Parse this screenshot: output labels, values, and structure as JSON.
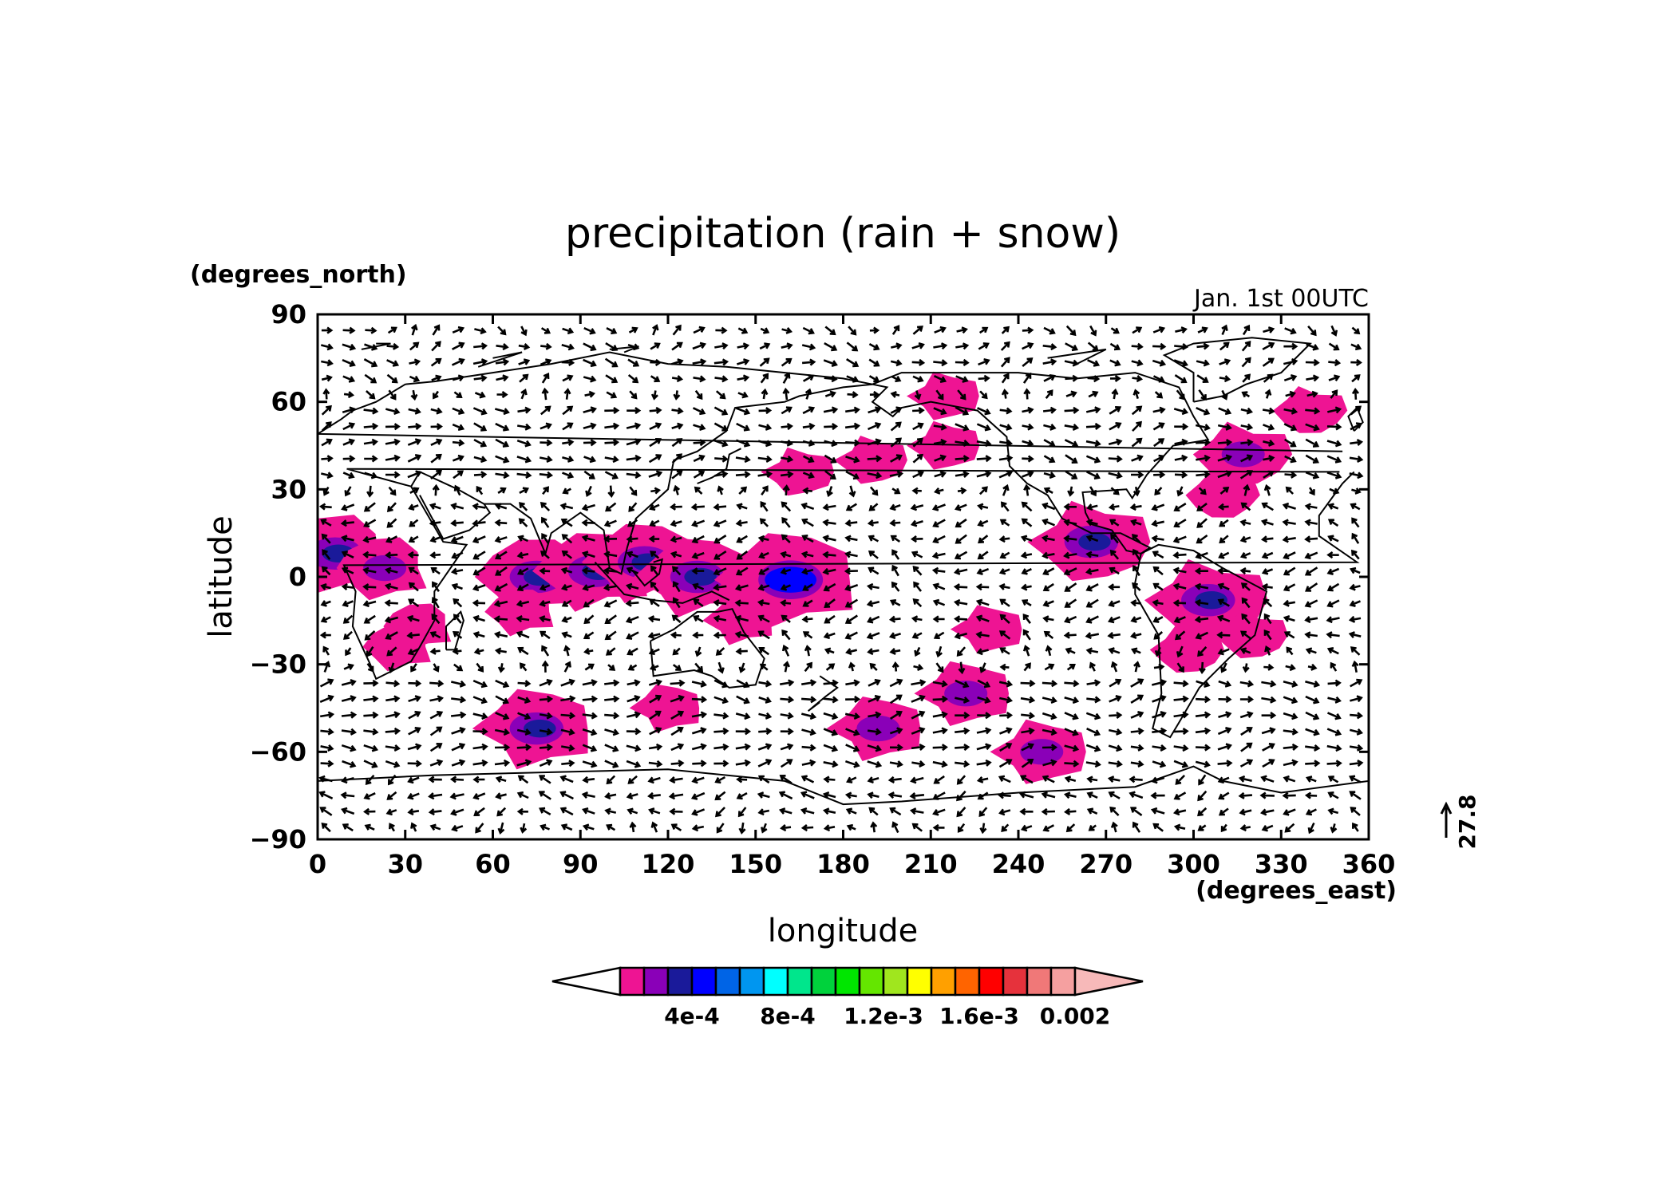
{
  "title": "precipitation (rain + snow)",
  "time_label": "Jan. 1st 00UTC",
  "y_units": "(degrees_north)",
  "x_units": "(degrees_east)",
  "x_title": "longitude",
  "y_title": "latitude",
  "vector_ref": "27.8",
  "x_ticks": [
    "0",
    "30",
    "60",
    "90",
    "120",
    "150",
    "180",
    "210",
    "240",
    "270",
    "300",
    "330",
    "360"
  ],
  "y_ticks": [
    "90",
    "60",
    "30",
    "0",
    "−30",
    "−60",
    "−90"
  ],
  "colorbar": {
    "colors": [
      "#ee1493",
      "#8a00b8",
      "#1a1a9a",
      "#0000ff",
      "#0064e6",
      "#0096f0",
      "#00ffff",
      "#00e68c",
      "#00d23c",
      "#00e600",
      "#64e600",
      "#a0e61e",
      "#ffff00",
      "#ffa000",
      "#ff6400",
      "#ff0000",
      "#e6323c",
      "#f07878",
      "#f5a0a0"
    ],
    "low_end_color": "#ffffff",
    "high_end_color": "#f7b9b9",
    "labels": [
      "4e-4",
      "8e-4",
      "1.2e-3",
      "1.6e-3",
      "0.002"
    ]
  },
  "chart_data": {
    "type": "heatmap",
    "title": "precipitation (rain + snow)",
    "xlabel": "longitude",
    "ylabel": "latitude",
    "x_units": "degrees_east",
    "y_units": "degrees_north",
    "xlim": [
      0,
      360
    ],
    "ylim": [
      -90,
      90
    ],
    "annotation": "Jan. 1st 00UTC",
    "vector_reference": 27.8,
    "precip_regions": [
      {
        "lon": 6,
        "lat": 8,
        "level": 3
      },
      {
        "lon": 23,
        "lat": 3,
        "level": 2
      },
      {
        "lon": 35,
        "lat": -17,
        "level": 1
      },
      {
        "lon": 28,
        "lat": -24,
        "level": 1
      },
      {
        "lon": 75,
        "lat": 0,
        "level": 3
      },
      {
        "lon": 70,
        "lat": -12,
        "level": 1
      },
      {
        "lon": 95,
        "lat": 2,
        "level": 3
      },
      {
        "lon": 112,
        "lat": 5,
        "level": 3
      },
      {
        "lon": 130,
        "lat": 0,
        "level": 3
      },
      {
        "lon": 162,
        "lat": -1,
        "level": 4
      },
      {
        "lon": 145,
        "lat": -15,
        "level": 1
      },
      {
        "lon": 75,
        "lat": -52,
        "level": 3
      },
      {
        "lon": 120,
        "lat": -45,
        "level": 1
      },
      {
        "lon": 192,
        "lat": -52,
        "level": 2
      },
      {
        "lon": 222,
        "lat": -40,
        "level": 2
      },
      {
        "lon": 230,
        "lat": -18,
        "level": 1
      },
      {
        "lon": 248,
        "lat": -60,
        "level": 2
      },
      {
        "lon": 215,
        "lat": 62,
        "level": 1
      },
      {
        "lon": 215,
        "lat": 45,
        "level": 1
      },
      {
        "lon": 165,
        "lat": 36,
        "level": 1
      },
      {
        "lon": 190,
        "lat": 40,
        "level": 1
      },
      {
        "lon": 265,
        "lat": 12,
        "level": 3
      },
      {
        "lon": 305,
        "lat": -8,
        "level": 3
      },
      {
        "lon": 320,
        "lat": -20,
        "level": 1
      },
      {
        "lon": 298,
        "lat": -25,
        "level": 1
      },
      {
        "lon": 317,
        "lat": 42,
        "level": 2
      },
      {
        "lon": 340,
        "lat": 57,
        "level": 1
      },
      {
        "lon": 310,
        "lat": 28,
        "level": 1
      }
    ]
  }
}
